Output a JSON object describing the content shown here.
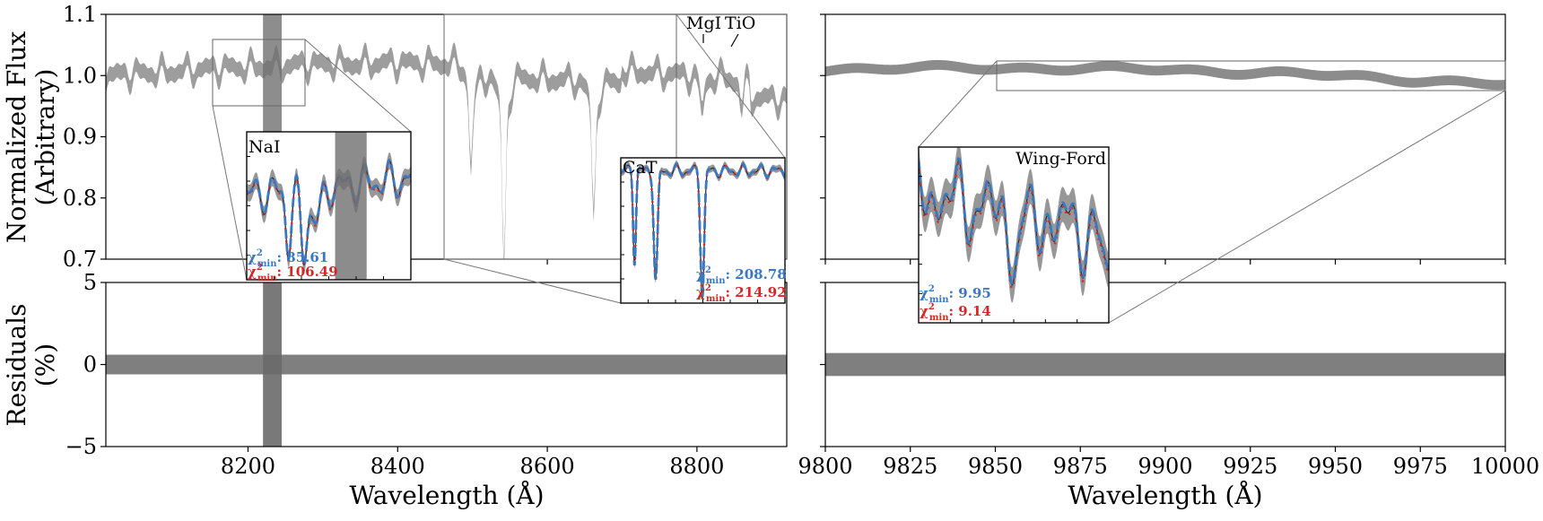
{
  "figure": {
    "ylabel_top": [
      "Normalized Flux",
      "(Arbitrary)"
    ],
    "ylabel_bottom": [
      "Residuals",
      "(%)"
    ],
    "xlabel": "Wavelength (Å)"
  },
  "annotations": {
    "mgi": "MgI",
    "tio": "TiO",
    "nai": "NaI",
    "cat": "CaT",
    "wingford": "Wing-Ford"
  },
  "chi": {
    "nai_blue": ": 85.61",
    "nai_red": ": 106.49",
    "cat_blue": ": 208.78",
    "cat_red": ": 214.92",
    "wf_blue": ": 9.95",
    "wf_red": ": 9.14"
  },
  "colors": {
    "blue": "#3a78c0",
    "red": "#d62728",
    "band": "#8c8c8c",
    "model": "#303030"
  },
  "chart_data": [
    {
      "type": "line",
      "panel": "flux-left",
      "xlim": [
        8010,
        8920
      ],
      "ylim": [
        0.7,
        1.1
      ],
      "yticks": [
        0.7,
        0.8,
        0.9,
        1.0,
        1.1
      ],
      "xticks": [
        8200,
        8400,
        8600,
        8800
      ],
      "absorption_lines": [
        {
          "x": 8498,
          "depth": 0.14
        },
        {
          "x": 8542,
          "depth": 0.25
        },
        {
          "x": 8662,
          "depth": 0.18
        },
        {
          "x": 8807,
          "depth": 0.05
        },
        {
          "x": 8860,
          "depth": 0.04
        }
      ],
      "shaded_region": [
        8220,
        8245
      ]
    },
    {
      "type": "line",
      "panel": "residual-left",
      "xlim": [
        8010,
        8920
      ],
      "ylim": [
        -5,
        5
      ],
      "yticks": [
        -5,
        0,
        5
      ],
      "xticks": [
        8200,
        8400,
        8600,
        8800
      ],
      "band_halfwidth": 0.6,
      "shaded_region": [
        8220,
        8245
      ]
    },
    {
      "type": "line",
      "panel": "flux-right",
      "xlim": [
        9800,
        10000
      ],
      "ylim": [
        0.7,
        1.1
      ],
      "xticks": [
        9800,
        9825,
        9850,
        9875,
        9900,
        9925,
        9950,
        9975,
        10000
      ],
      "baseline": [
        {
          "x": 9800,
          "y": 1.01
        },
        {
          "x": 9840,
          "y": 1.013
        },
        {
          "x": 9900,
          "y": 1.01
        },
        {
          "x": 9950,
          "y": 1.0
        },
        {
          "x": 10000,
          "y": 0.985
        }
      ]
    },
    {
      "type": "line",
      "panel": "residual-right",
      "xlim": [
        9800,
        10000
      ],
      "ylim": [
        -5,
        5
      ],
      "xticks": [
        9800,
        9825,
        9850,
        9875,
        9900,
        9925,
        9950,
        9975,
        10000
      ],
      "band_halfwidth": 0.7
    }
  ]
}
